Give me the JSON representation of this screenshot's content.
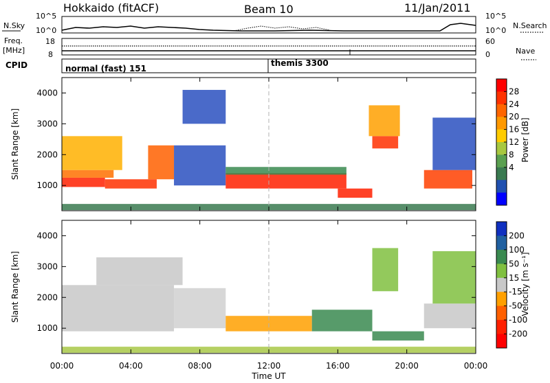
{
  "header": {
    "station": "Hokkaido (fitACF)",
    "beam": "Beam 10",
    "date": "11/Jan/2011"
  },
  "strips": {
    "nsky": {
      "left_label": "N.Sky",
      "right_label": "N.Search",
      "ticks_left": [
        "10^5",
        "10^0"
      ],
      "ticks_right": [
        "10^5",
        "10^0"
      ]
    },
    "freq": {
      "left_label_1": "Freq.",
      "left_label_2": "[MHz]",
      "right_label": "Nave",
      "ticks_left": [
        "18",
        "8"
      ],
      "ticks_right": [
        "60",
        "0"
      ]
    },
    "cpid": {
      "left_label": "CPID",
      "segments": [
        {
          "label": "normal (fast) 151"
        },
        {
          "label": "themis 3300"
        }
      ]
    }
  },
  "chart_data": [
    {
      "type": "heatmap",
      "title": "",
      "xlabel": "Time UT",
      "ylabel": "Slant Range [km]",
      "x_ticks": [
        "00:00",
        "04:00",
        "08:00",
        "12:00",
        "16:00",
        "20:00",
        "00:00"
      ],
      "x_tick_hours": [
        0,
        4,
        8,
        12,
        16,
        20,
        24
      ],
      "xlim_hours": [
        0,
        24
      ],
      "y_ticks": [
        1000,
        2000,
        3000,
        4000
      ],
      "ylim": [
        180,
        4500
      ],
      "colorbar": {
        "label": "Power [dB]",
        "ticks": [
          "28",
          "24",
          "20",
          "16",
          "12",
          "8",
          "4"
        ],
        "colors": [
          "#ff0000",
          "#ff3200",
          "#ff6600",
          "#ff9900",
          "#ffcc00",
          "#a8c840",
          "#5aa050",
          "#3a7a50",
          "#2050b0",
          "#0000ff"
        ]
      },
      "echo_regions": [
        {
          "t": [
            0.0,
            2.5
          ],
          "r": [
            950,
            1250
          ],
          "color": "#ff2000"
        },
        {
          "t": [
            0.0,
            3.0
          ],
          "r": [
            1250,
            1500
          ],
          "color": "#ff7000"
        },
        {
          "t": [
            0.0,
            3.5
          ],
          "r": [
            1500,
            2600
          ],
          "color": "#ffb000"
        },
        {
          "t": [
            2.5,
            5.5
          ],
          "r": [
            900,
            1200
          ],
          "color": "#ff3000"
        },
        {
          "t": [
            5.0,
            6.5
          ],
          "r": [
            1200,
            2300
          ],
          "color": "#ff6000"
        },
        {
          "t": [
            6.5,
            9.5
          ],
          "r": [
            1000,
            2300
          ],
          "color": "#2a50c0"
        },
        {
          "t": [
            7.0,
            9.5
          ],
          "r": [
            3000,
            4100
          ],
          "color": "#2a50c0"
        },
        {
          "t": [
            9.5,
            16.5
          ],
          "r": [
            900,
            1400
          ],
          "color": "#ff2000"
        },
        {
          "t": [
            9.5,
            16.5
          ],
          "r": [
            1350,
            1600
          ],
          "color": "#3a8a50"
        },
        {
          "t": [
            16.0,
            18.0
          ],
          "r": [
            600,
            900
          ],
          "color": "#ff2000"
        },
        {
          "t": [
            18.0,
            19.5
          ],
          "r": [
            2200,
            2600
          ],
          "color": "#ff3000"
        },
        {
          "t": [
            17.8,
            19.6
          ],
          "r": [
            2600,
            3600
          ],
          "color": "#ffa000"
        },
        {
          "t": [
            21.0,
            23.8
          ],
          "r": [
            900,
            1500
          ],
          "color": "#ff4000"
        },
        {
          "t": [
            21.5,
            24.0
          ],
          "r": [
            1500,
            3200
          ],
          "color": "#2a50c0"
        },
        {
          "t": [
            0.0,
            24.0
          ],
          "r": [
            200,
            400
          ],
          "color": "#3a7a50"
        }
      ]
    },
    {
      "type": "heatmap",
      "title": "",
      "xlabel": "Time UT",
      "ylabel": "Slant Range [km]",
      "x_ticks": [
        "00:00",
        "04:00",
        "08:00",
        "12:00",
        "16:00",
        "20:00",
        "00:00"
      ],
      "x_tick_hours": [
        0,
        4,
        8,
        12,
        16,
        20,
        24
      ],
      "xlim_hours": [
        0,
        24
      ],
      "y_ticks": [
        1000,
        2000,
        3000,
        4000
      ],
      "ylim": [
        180,
        4500
      ],
      "colorbar": {
        "label": "Velocity [m s⁻¹]",
        "ticks": [
          "200",
          "100",
          "50",
          "15",
          "-15",
          "-50",
          "-100",
          "-200"
        ],
        "colors": [
          "#1030c0",
          "#2060a0",
          "#3a8a50",
          "#80c040",
          "#c8c8c8",
          "#ffa000",
          "#ff6000",
          "#ff2000",
          "#ff0000"
        ]
      },
      "echo_regions": [
        {
          "t": [
            0.0,
            6.5
          ],
          "r": [
            900,
            2400
          ],
          "color": "#c8c8c8"
        },
        {
          "t": [
            2.0,
            7.0
          ],
          "r": [
            2400,
            3300
          ],
          "color": "#c8c8c8"
        },
        {
          "t": [
            6.5,
            9.5
          ],
          "r": [
            1000,
            2300
          ],
          "color": "#d0d0d0"
        },
        {
          "t": [
            9.5,
            14.5
          ],
          "r": [
            900,
            1400
          ],
          "color": "#ffa000"
        },
        {
          "t": [
            14.5,
            18.0
          ],
          "r": [
            900,
            1600
          ],
          "color": "#3a8a50"
        },
        {
          "t": [
            18.0,
            21.0
          ],
          "r": [
            600,
            900
          ],
          "color": "#3a8a50"
        },
        {
          "t": [
            18.0,
            19.5
          ],
          "r": [
            2200,
            3600
          ],
          "color": "#80c040"
        },
        {
          "t": [
            21.0,
            24.0
          ],
          "r": [
            1000,
            1800
          ],
          "color": "#c8c8c8"
        },
        {
          "t": [
            21.5,
            24.0
          ],
          "r": [
            1800,
            3500
          ],
          "color": "#80c040"
        },
        {
          "t": [
            0.0,
            24.0
          ],
          "r": [
            200,
            400
          ],
          "color": "#a8c848"
        }
      ]
    }
  ]
}
